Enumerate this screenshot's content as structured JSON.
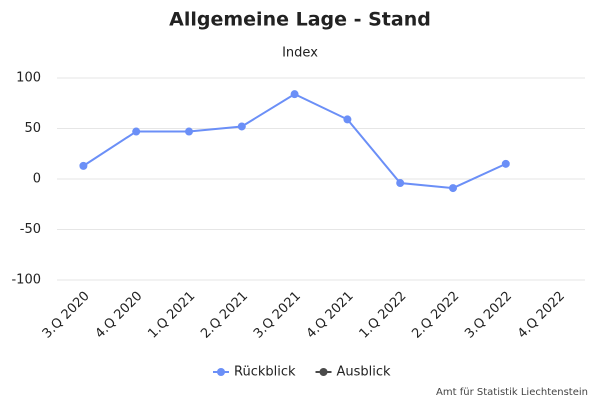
{
  "chart_data": {
    "type": "line",
    "title": "Allgemeine Lage - Stand",
    "subtitle": "Index",
    "categories": [
      "3.Q 2020",
      "4.Q 2020",
      "1.Q 2021",
      "2.Q 2021",
      "3.Q 2021",
      "4.Q 2021",
      "1.Q 2022",
      "2.Q 2022",
      "3.Q 2022",
      "4.Q 2022"
    ],
    "series": [
      {
        "name": "Rückblick",
        "color": "#6b8ff7",
        "values": [
          13,
          47,
          47,
          52,
          84,
          59,
          -4,
          -9,
          15,
          null
        ]
      },
      {
        "name": "Ausblick",
        "color": "#4a4a4a",
        "values": [
          null,
          null,
          null,
          null,
          null,
          null,
          null,
          null,
          null,
          null
        ]
      }
    ],
    "ylim": [
      -100,
      100
    ],
    "yticks": [
      -100,
      -50,
      0,
      50,
      100
    ],
    "grid": true,
    "credit": "Amt für Statistik Liechtenstein"
  }
}
